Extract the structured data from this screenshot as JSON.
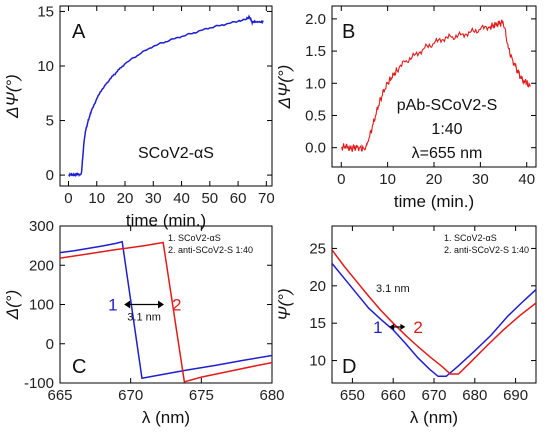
{
  "chart_data": [
    {
      "panel": "A",
      "type": "line",
      "xlabel": "time (min.)",
      "ylabel": "ΔΨ(°)",
      "xlim": [
        -3,
        72
      ],
      "ylim": [
        -1,
        15.5
      ],
      "xticks": [
        0,
        10,
        20,
        30,
        40,
        50,
        60,
        70
      ],
      "yticks": [
        0,
        5,
        10,
        15
      ],
      "annotation": "SCoV2-αS",
      "series": [
        {
          "color": "#1f1fcf",
          "points": [
            [
              0,
              0.0
            ],
            [
              1,
              0.05
            ],
            [
              2,
              0.0
            ],
            [
              3,
              0.1
            ],
            [
              4,
              0.05
            ],
            [
              4.6,
              0.2
            ],
            [
              5.0,
              1.5
            ],
            [
              5.5,
              3.0
            ],
            [
              6,
              4.0
            ],
            [
              7,
              5.0
            ],
            [
              8,
              5.8
            ],
            [
              10,
              7.0
            ],
            [
              12,
              7.9
            ],
            [
              15,
              8.9
            ],
            [
              18,
              9.7
            ],
            [
              20,
              10.2
            ],
            [
              25,
              11.1
            ],
            [
              30,
              11.8
            ],
            [
              35,
              12.3
            ],
            [
              40,
              12.7
            ],
            [
              45,
              13.1
            ],
            [
              50,
              13.5
            ],
            [
              55,
              13.8
            ],
            [
              60,
              14.1
            ],
            [
              63,
              14.3
            ],
            [
              64,
              14.5
            ],
            [
              65,
              14.0
            ],
            [
              66,
              14.1
            ],
            [
              68,
              14.0
            ],
            [
              69,
              14.1
            ]
          ]
        }
      ]
    },
    {
      "panel": "B",
      "type": "line",
      "xlabel": "time (min.)",
      "ylabel": "ΔΨ(°)",
      "xlim": [
        -2,
        42
      ],
      "ylim": [
        -0.3,
        2.2
      ],
      "xticks": [
        0,
        10,
        20,
        30,
        40
      ],
      "yticks": [
        0.0,
        0.5,
        1.0,
        1.5,
        2.0
      ],
      "annotation_lines": [
        "pAb-SCoV2-S",
        "1:40",
        "λ=655 nm"
      ],
      "series": [
        {
          "color": "#e31a1a",
          "points": [
            [
              0,
              0.0
            ],
            [
              1,
              0.02
            ],
            [
              2,
              -0.02
            ],
            [
              3,
              0.01
            ],
            [
              4,
              0.0
            ],
            [
              5,
              -0.02
            ],
            [
              5.5,
              0.0
            ],
            [
              6,
              0.15
            ],
            [
              7,
              0.4
            ],
            [
              8,
              0.65
            ],
            [
              9,
              0.85
            ],
            [
              10,
              1.0
            ],
            [
              11,
              1.1
            ],
            [
              12,
              1.2
            ],
            [
              14,
              1.35
            ],
            [
              16,
              1.45
            ],
            [
              18,
              1.55
            ],
            [
              20,
              1.62
            ],
            [
              22,
              1.68
            ],
            [
              24,
              1.72
            ],
            [
              26,
              1.76
            ],
            [
              28,
              1.8
            ],
            [
              30,
              1.84
            ],
            [
              32,
              1.87
            ],
            [
              33,
              1.9
            ],
            [
              34,
              1.93
            ],
            [
              35,
              1.95
            ],
            [
              35.5,
              1.75
            ],
            [
              36,
              1.55
            ],
            [
              37,
              1.35
            ],
            [
              38,
              1.2
            ],
            [
              39,
              1.05
            ],
            [
              40,
              1.0
            ],
            [
              40.8,
              0.95
            ]
          ]
        }
      ]
    },
    {
      "panel": "C",
      "type": "line",
      "xlabel": "λ (nm)",
      "ylabel": "Δ(°)",
      "xlim": [
        665,
        680
      ],
      "ylim": [
        -100,
        300
      ],
      "xticks": [
        665,
        670,
        675,
        680
      ],
      "yticks": [
        -100,
        0,
        100,
        200,
        300
      ],
      "legend": [
        "1. SCoV2-αS",
        "2. anti-SCoV2-S 1:40"
      ],
      "annotation": "3.1 nm",
      "series": [
        {
          "name": "1",
          "color": "#1f1fcf",
          "points": [
            [
              665,
              232
            ],
            [
              666,
              237
            ],
            [
              667,
              243
            ],
            [
              668,
              249
            ],
            [
              669,
              256
            ],
            [
              669.4,
              260
            ],
            [
              670.8,
              -88
            ],
            [
              672,
              -80
            ],
            [
              674,
              -67
            ],
            [
              676,
              -55
            ],
            [
              678,
              -42
            ],
            [
              680,
              -30
            ]
          ]
        },
        {
          "name": "2",
          "color": "#e31a1a",
          "points": [
            [
              665,
              218
            ],
            [
              667,
              229
            ],
            [
              669,
              240
            ],
            [
              671,
              250
            ],
            [
              672.3,
              258
            ],
            [
              673.8,
              -97
            ],
            [
              675,
              -85
            ],
            [
              677,
              -70
            ],
            [
              679,
              -55
            ],
            [
              680,
              -48
            ]
          ]
        }
      ]
    },
    {
      "panel": "D",
      "type": "line",
      "xlabel": "λ (nm)",
      "ylabel": "Ψ(°)",
      "xlim": [
        645,
        695
      ],
      "ylim": [
        7,
        28
      ],
      "xticks": [
        650,
        660,
        670,
        680,
        690
      ],
      "yticks": [
        10,
        15,
        20,
        25
      ],
      "legend": [
        "1. SCoV2-αS",
        "2. anti-SCoV2-S 1:40"
      ],
      "annotation": "3.1 nm",
      "series": [
        {
          "name": "1",
          "color": "#1f1fcf",
          "points": [
            [
              645,
              23
            ],
            [
              648,
              21
            ],
            [
              651,
              19
            ],
            [
              654,
              17
            ],
            [
              657,
              15.5
            ],
            [
              660,
              14.1
            ],
            [
              663,
              12.3
            ],
            [
              666,
              10.4
            ],
            [
              669,
              8.8
            ],
            [
              671,
              7.9
            ],
            [
              673,
              7.9
            ],
            [
              676,
              9.3
            ],
            [
              680,
              11.3
            ],
            [
              684,
              13.4
            ],
            [
              688,
              15.9
            ],
            [
              692,
              18
            ],
            [
              695,
              19.5
            ]
          ]
        },
        {
          "name": "2",
          "color": "#e31a1a",
          "points": [
            [
              645,
              24.8
            ],
            [
              648,
              22.6
            ],
            [
              651,
              20.6
            ],
            [
              654,
              18.6
            ],
            [
              657,
              16.7
            ],
            [
              660,
              15
            ],
            [
              663,
              13.4
            ],
            [
              666,
              11.9
            ],
            [
              669,
              10.5
            ],
            [
              672,
              9.2
            ],
            [
              674,
              8.2
            ],
            [
              676,
              8.2
            ],
            [
              679,
              9.8
            ],
            [
              683,
              12
            ],
            [
              687,
              14.1
            ],
            [
              691,
              16
            ],
            [
              695,
              17.7
            ]
          ]
        }
      ]
    }
  ]
}
